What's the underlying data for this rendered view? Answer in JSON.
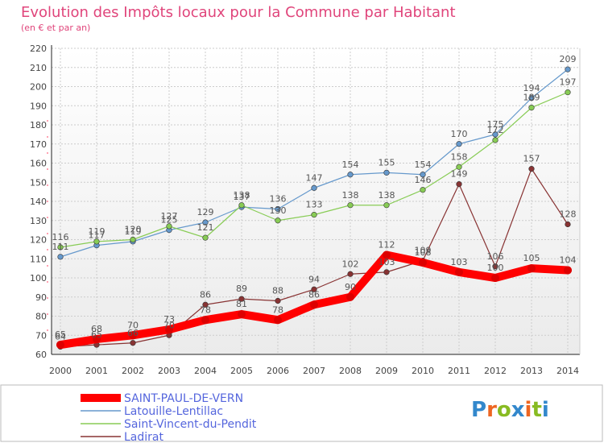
{
  "chart_data": {
    "type": "line",
    "title": "Evolution des Impôts locaux pour la Commune par Habitant",
    "subtitle": "(en € et par an)",
    "xlabel": "",
    "ylabel": "",
    "ylim": [
      60,
      220
    ],
    "yticks": [
      60,
      70,
      80,
      90,
      100,
      110,
      120,
      130,
      140,
      150,
      160,
      170,
      180,
      190,
      200,
      210,
      220
    ],
    "grid": true,
    "legend_position": "bottom-left",
    "categories": [
      "2000",
      "2001",
      "2002",
      "2003",
      "2004",
      "2005",
      "2006",
      "2007",
      "2008",
      "2009",
      "2010",
      "2011",
      "2012",
      "2013",
      "2014"
    ],
    "series": [
      {
        "name": "SAINT-PAUL-DE-VERN",
        "color": "#ff0000",
        "values": [
          65,
          68,
          70,
          73,
          78,
          81,
          78,
          86,
          90,
          112,
          108,
          103,
          100,
          105,
          104
        ]
      },
      {
        "name": "Latouille-Lentillac",
        "color": "#6699cc",
        "values": [
          111,
          117,
          119,
          125,
          129,
          137,
          136,
          147,
          154,
          155,
          154,
          170,
          175,
          194,
          209
        ]
      },
      {
        "name": "Saint-Vincent-du-Pendit",
        "color": "#88cc55",
        "values": [
          116,
          119,
          120,
          127,
          121,
          138,
          130,
          133,
          138,
          138,
          146,
          158,
          172,
          189,
          197
        ]
      },
      {
        "name": "Ladirat",
        "color": "#883333",
        "values": [
          64,
          65,
          66,
          70,
          86,
          89,
          88,
          94,
          102,
          103,
          109,
          149,
          106,
          157,
          128
        ]
      }
    ]
  },
  "branding": {
    "logo_text": "Proxiti"
  }
}
